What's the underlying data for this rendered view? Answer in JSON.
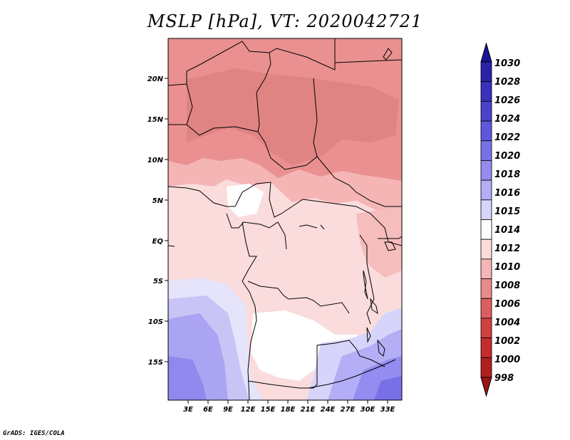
{
  "title": "MSLP [hPa], VT: 2020042721",
  "credit": "GrADS: IGES/COLA",
  "map": {
    "lon_range": [
      0,
      35
    ],
    "lat_range": [
      -20,
      24
    ],
    "lat_ticks": [
      "20N",
      "15N",
      "10N",
      "5N",
      "EQ",
      "5S",
      "10S",
      "15S"
    ],
    "lat_values": [
      20,
      15,
      10,
      5,
      0,
      -5,
      -10,
      -15
    ],
    "lon_ticks": [
      "3E",
      "6E",
      "9E",
      "12E",
      "15E",
      "18E",
      "21E",
      "24E",
      "27E",
      "30E",
      "33E"
    ],
    "lon_values": [
      3,
      6,
      9,
      12,
      15,
      18,
      21,
      24,
      27,
      30,
      33
    ]
  },
  "colorbar": {
    "levels": [
      "1030",
      "1028",
      "1026",
      "1024",
      "1022",
      "1020",
      "1018",
      "1016",
      "1015",
      "1014",
      "1012",
      "1010",
      "1008",
      "1006",
      "1004",
      "1002",
      "1000",
      "998"
    ],
    "colors": [
      "#1c1496",
      "#2a22a8",
      "#3a30bc",
      "#4b42cc",
      "#5f57db",
      "#7870e6",
      "#948cf0",
      "#b4aef6",
      "#d6d4fa",
      "#ffffff",
      "#fadcdc",
      "#f5b5b5",
      "#e88a8a",
      "#dc5f5f",
      "#d14040",
      "#c42c2c",
      "#b01e1e",
      "#9a1414"
    ]
  }
}
